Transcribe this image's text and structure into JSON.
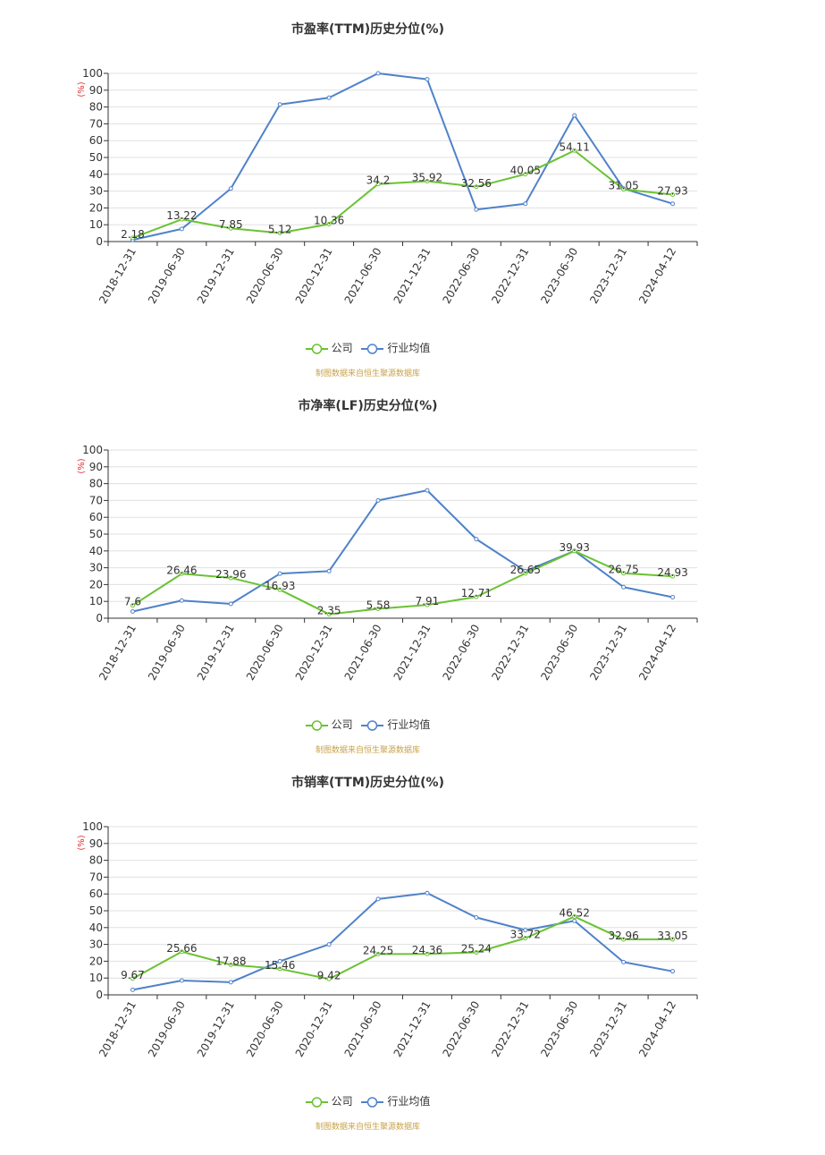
{
  "colors": {
    "company": "#6ac232",
    "industry": "#4f82c9",
    "grid": "#e0e0e0",
    "axis": "#333333",
    "unit": "#e03030",
    "source": "#c8a24a"
  },
  "legend": {
    "company": "公司",
    "industry": "行业均值"
  },
  "source_note": "制图数据来自恒生聚源数据库",
  "chart_data": [
    {
      "type": "line",
      "title": "市盈率(TTM)历史分位(%)",
      "y_unit": "(%)",
      "ylim": [
        0,
        100
      ],
      "yticks": [
        0,
        10,
        20,
        30,
        40,
        50,
        60,
        70,
        80,
        90,
        100
      ],
      "grid": true,
      "legend_position": "bottom",
      "categories": [
        "2018-12-31",
        "2019-06-30",
        "2019-12-31",
        "2020-06-30",
        "2020-12-31",
        "2021-06-30",
        "2021-12-31",
        "2022-06-30",
        "2022-12-31",
        "2023-06-30",
        "2023-12-31",
        "2024-04-12"
      ],
      "series": [
        {
          "name": "公司",
          "values": [
            2.18,
            13.22,
            7.85,
            5.12,
            10.36,
            34.2,
            35.92,
            32.56,
            40.05,
            54.11,
            31.05,
            27.93
          ],
          "labels": [
            "2.18",
            "13.22",
            "7.85",
            "5.12",
            "10.36",
            "34.2",
            "35.92",
            "32.56",
            "40.05",
            "54.11",
            "31.05",
            "27.93"
          ]
        },
        {
          "name": "行业均值",
          "values": [
            1,
            7.5,
            31.5,
            81.5,
            85.5,
            100,
            96.5,
            19,
            22.5,
            75,
            31.5,
            22.5
          ]
        }
      ]
    },
    {
      "type": "line",
      "title": "市净率(LF)历史分位(%)",
      "y_unit": "(%)",
      "ylim": [
        0,
        100
      ],
      "yticks": [
        0,
        10,
        20,
        30,
        40,
        50,
        60,
        70,
        80,
        90,
        100
      ],
      "grid": true,
      "legend_position": "bottom",
      "categories": [
        "2018-12-31",
        "2019-06-30",
        "2019-12-31",
        "2020-06-30",
        "2020-12-31",
        "2021-06-30",
        "2021-12-31",
        "2022-06-30",
        "2022-12-31",
        "2023-06-30",
        "2023-12-31",
        "2024-04-12"
      ],
      "series": [
        {
          "name": "公司",
          "values": [
            7.6,
            26.46,
            23.96,
            16.93,
            2.35,
            5.58,
            7.91,
            12.71,
            26.65,
            39.93,
            26.75,
            24.93
          ],
          "labels": [
            "7.6",
            "26.46",
            "23.96",
            "16.93",
            "2.35",
            "5.58",
            "7.91",
            "12.71",
            "26.65",
            "39.93",
            "26.75",
            "24.93"
          ]
        },
        {
          "name": "行业均值",
          "values": [
            4,
            10.5,
            8.5,
            26.5,
            28,
            70,
            76,
            47,
            28,
            40,
            18.5,
            12.5
          ]
        }
      ]
    },
    {
      "type": "line",
      "title": "市销率(TTM)历史分位(%)",
      "y_unit": "(%)",
      "ylim": [
        0,
        100
      ],
      "yticks": [
        0,
        10,
        20,
        30,
        40,
        50,
        60,
        70,
        80,
        90,
        100
      ],
      "grid": true,
      "legend_position": "bottom",
      "categories": [
        "2018-12-31",
        "2019-06-30",
        "2019-12-31",
        "2020-06-30",
        "2020-12-31",
        "2021-06-30",
        "2021-12-31",
        "2022-06-30",
        "2022-12-31",
        "2023-06-30",
        "2023-12-31",
        "2024-04-12"
      ],
      "series": [
        {
          "name": "公司",
          "values": [
            9.67,
            25.66,
            17.88,
            15.46,
            9.42,
            24.25,
            24.36,
            25.24,
            33.72,
            46.52,
            32.96,
            33.05
          ],
          "labels": [
            "9.67",
            "25.66",
            "17.88",
            "15.46",
            "9.42",
            "24.25",
            "24.36",
            "25.24",
            "33.72",
            "46.52",
            "32.96",
            "33.05"
          ]
        },
        {
          "name": "行业均值",
          "values": [
            3,
            8.5,
            7.5,
            20,
            30,
            57,
            60.5,
            46,
            38.5,
            44,
            19.5,
            14
          ]
        }
      ]
    }
  ]
}
